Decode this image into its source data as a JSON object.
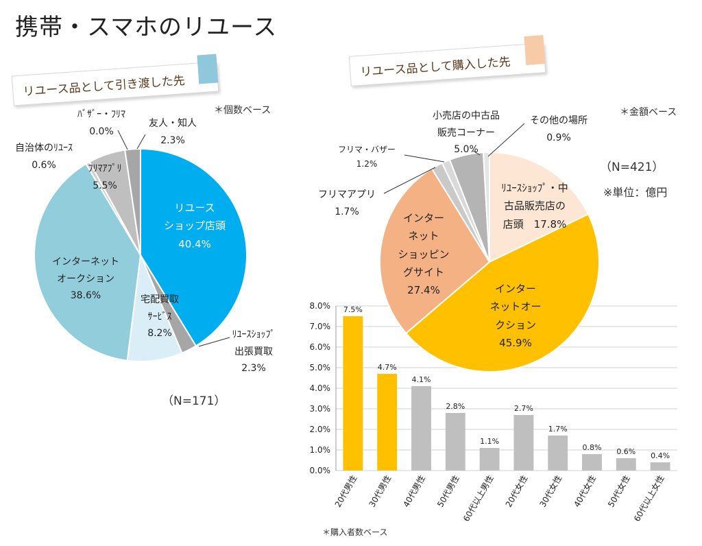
{
  "page_title": "携帯・スマホのリユース",
  "left": {
    "banner": "リユース品として引き渡した先",
    "banner_color": "#8fc8dd",
    "base_note": "＊個数ベース",
    "n_label": "（N=171）"
  },
  "right": {
    "banner": "リユース品として購入した先",
    "banner_color": "#f7cba8",
    "base_note": "＊金額ベース",
    "n_label": "（N=421）",
    "unit_note": "※単位：億円",
    "bar_note": "＊購入者数ベース"
  },
  "chart_data": [
    {
      "type": "pie",
      "title": "リユース品として引き渡した先",
      "slices": [
        {
          "name": "リユースショップ店頭",
          "value": 40.4,
          "color": "#00aeef",
          "label_lines": [
            "リユース",
            "ショップ店頭",
            "40.4%"
          ]
        },
        {
          "name": "リユースショップ出張買取",
          "value": 2.3,
          "color": "#a6a6a6",
          "label_lines": [
            "ﾘﾕｰｽｼｮｯﾌﾟ",
            "出張買取",
            "2.3%"
          ]
        },
        {
          "name": "宅配買取サービス",
          "value": 8.2,
          "color": "#d9eef6",
          "label_lines": [
            "宅配買取",
            "ｻｰﾋﾞｽ",
            "8.2%"
          ]
        },
        {
          "name": "インターネットオークション",
          "value": 38.6,
          "color": "#92cddc",
          "label_lines": [
            "インターネット",
            "オークション",
            "38.6%"
          ]
        },
        {
          "name": "自治体のリユース",
          "value": 0.6,
          "color": "#d0d0d0",
          "label_lines": [
            "自治体のﾘﾕｰｽ",
            "0.6%"
          ]
        },
        {
          "name": "フリマアプリ",
          "value": 5.5,
          "color": "#bfbfbf",
          "label_lines": [
            "ﾌﾘﾏｱﾌﾟﾘ",
            "5.5%"
          ]
        },
        {
          "name": "バザー・フリマ",
          "value": 0.0,
          "color": "#d9d9d9",
          "label_lines": [
            "ﾊﾞｻﾞｰ・ﾌﾘﾏ",
            "0.0%"
          ]
        },
        {
          "name": "友人・知人",
          "value": 2.3,
          "color": "#a6a6a6",
          "label_lines": [
            "友人・知人",
            "2.3%"
          ]
        }
      ]
    },
    {
      "type": "pie",
      "title": "リユース品として購入した先",
      "slices": [
        {
          "name": "リユースショップ・中古品販売店の店頭",
          "value": 17.8,
          "color": "#fde6d4",
          "label_lines": [
            "ﾘﾕｰｽｼｮｯﾌﾟ・中",
            "古品販売店の",
            "店頭　17.8%"
          ]
        },
        {
          "name": "インターネットオークション",
          "value": 45.9,
          "color": "#ffc000",
          "label_lines": [
            "インター",
            "ネットオー",
            "クション",
            "45.9%"
          ]
        },
        {
          "name": "インターネットショッピングサイト",
          "value": 27.4,
          "color": "#f4b183",
          "label_lines": [
            "インター",
            "ネット",
            "ショッピン",
            "グサイト",
            "27.4%"
          ]
        },
        {
          "name": "フリマアプリ",
          "value": 1.7,
          "color": "#c9c9c9",
          "label_lines": [
            "フリマアプリ",
            "1.7%"
          ]
        },
        {
          "name": "フリマ・バザー",
          "value": 1.2,
          "color": "#d9d9d9",
          "label_lines": [
            "フリマ・バザー",
            "1.2%"
          ]
        },
        {
          "name": "小売店の中古品販売コーナー",
          "value": 5.0,
          "color": "#b4b4b4",
          "label_lines": [
            "小売店の中古品",
            "販売コーナー",
            "5.0%"
          ]
        },
        {
          "name": "その他の場所",
          "value": 0.9,
          "color": "#e7e6e6",
          "label_lines": [
            "その他の場所",
            "0.9%"
          ]
        }
      ]
    },
    {
      "type": "bar",
      "title": "",
      "categories": [
        "20代男性",
        "30代男性",
        "40代男性",
        "50代男性",
        "60代以上男性",
        "20代女性",
        "30代女性",
        "40代女性",
        "50代女性",
        "60代以上女性"
      ],
      "values": [
        7.5,
        4.7,
        4.1,
        2.8,
        1.1,
        2.7,
        1.7,
        0.8,
        0.6,
        0.4
      ],
      "value_labels": [
        "7.5%",
        "4.7%",
        "4.1%",
        "2.8%",
        "1.1%",
        "2.7%",
        "1.7%",
        "0.8%",
        "0.6%",
        "0.4%"
      ],
      "colors": [
        "#ffc000",
        "#ffc000",
        "#bfbfbf",
        "#bfbfbf",
        "#bfbfbf",
        "#bfbfbf",
        "#bfbfbf",
        "#bfbfbf",
        "#bfbfbf",
        "#bfbfbf"
      ],
      "yticks": [
        "0.0%",
        "1.0%",
        "2.0%",
        "3.0%",
        "4.0%",
        "5.0%",
        "6.0%",
        "7.0%",
        "8.0%"
      ],
      "ylim": [
        0,
        8
      ],
      "xlabel": "",
      "ylabel": "",
      "grid": true
    }
  ]
}
